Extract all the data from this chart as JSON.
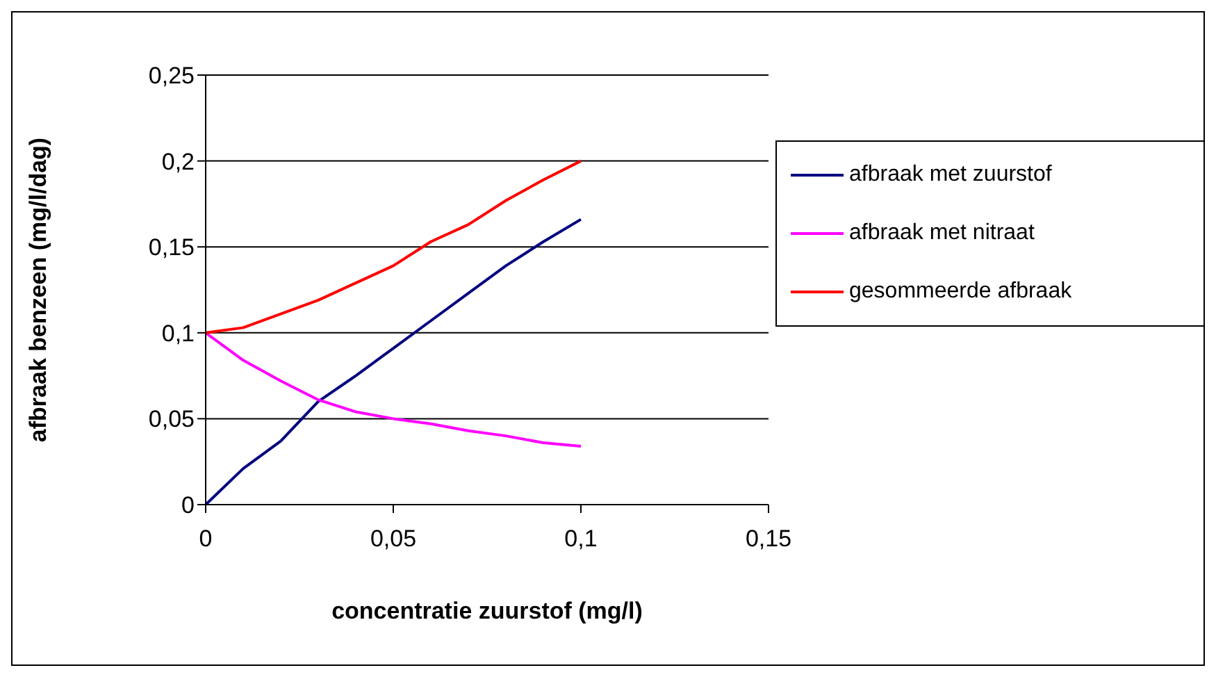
{
  "chart_data": {
    "type": "line",
    "xlabel": "concentratie zuurstof (mg/l)",
    "ylabel": "afbraak benzeen (mg/l/dag)",
    "x": [
      0,
      0.01,
      0.02,
      0.03,
      0.04,
      0.05,
      0.06,
      0.07,
      0.08,
      0.09,
      0.1
    ],
    "series": [
      {
        "name": "afbraak met zuurstof",
        "color": "#000080",
        "values": [
          0,
          0.021,
          0.037,
          0.06,
          0.075,
          0.091,
          0.107,
          0.123,
          0.139,
          0.153,
          0.166
        ]
      },
      {
        "name": "afbraak met nitraat",
        "color": "#ff00ff",
        "values": [
          0.1,
          0.084,
          0.072,
          0.061,
          0.054,
          0.05,
          0.047,
          0.043,
          0.04,
          0.036,
          0.034
        ]
      },
      {
        "name": "gesommeerde afbraak",
        "color": "#ff0000",
        "values": [
          0.1,
          0.103,
          0.111,
          0.119,
          0.129,
          0.139,
          0.153,
          0.163,
          0.177,
          0.189,
          0.2
        ]
      }
    ],
    "xlim": [
      0,
      0.15
    ],
    "xticks": [
      0,
      {
        "value": 0.05,
        "label": "0,05"
      },
      {
        "value": 0.1,
        "label": "0,1"
      },
      {
        "value": 0.15,
        "label": "0,15"
      }
    ],
    "ylim": [
      0,
      0.25
    ],
    "yticks": [
      0,
      {
        "value": 0.05,
        "label": "0,05"
      },
      {
        "value": 0.1,
        "label": "0,1"
      },
      {
        "value": 0.15,
        "label": "0,15"
      },
      {
        "value": 0.2,
        "label": "0,2"
      },
      {
        "value": 0.25,
        "label": "0,25"
      }
    ],
    "grid": "y",
    "legend": "right",
    "marker": "none",
    "line_style": "solid"
  }
}
